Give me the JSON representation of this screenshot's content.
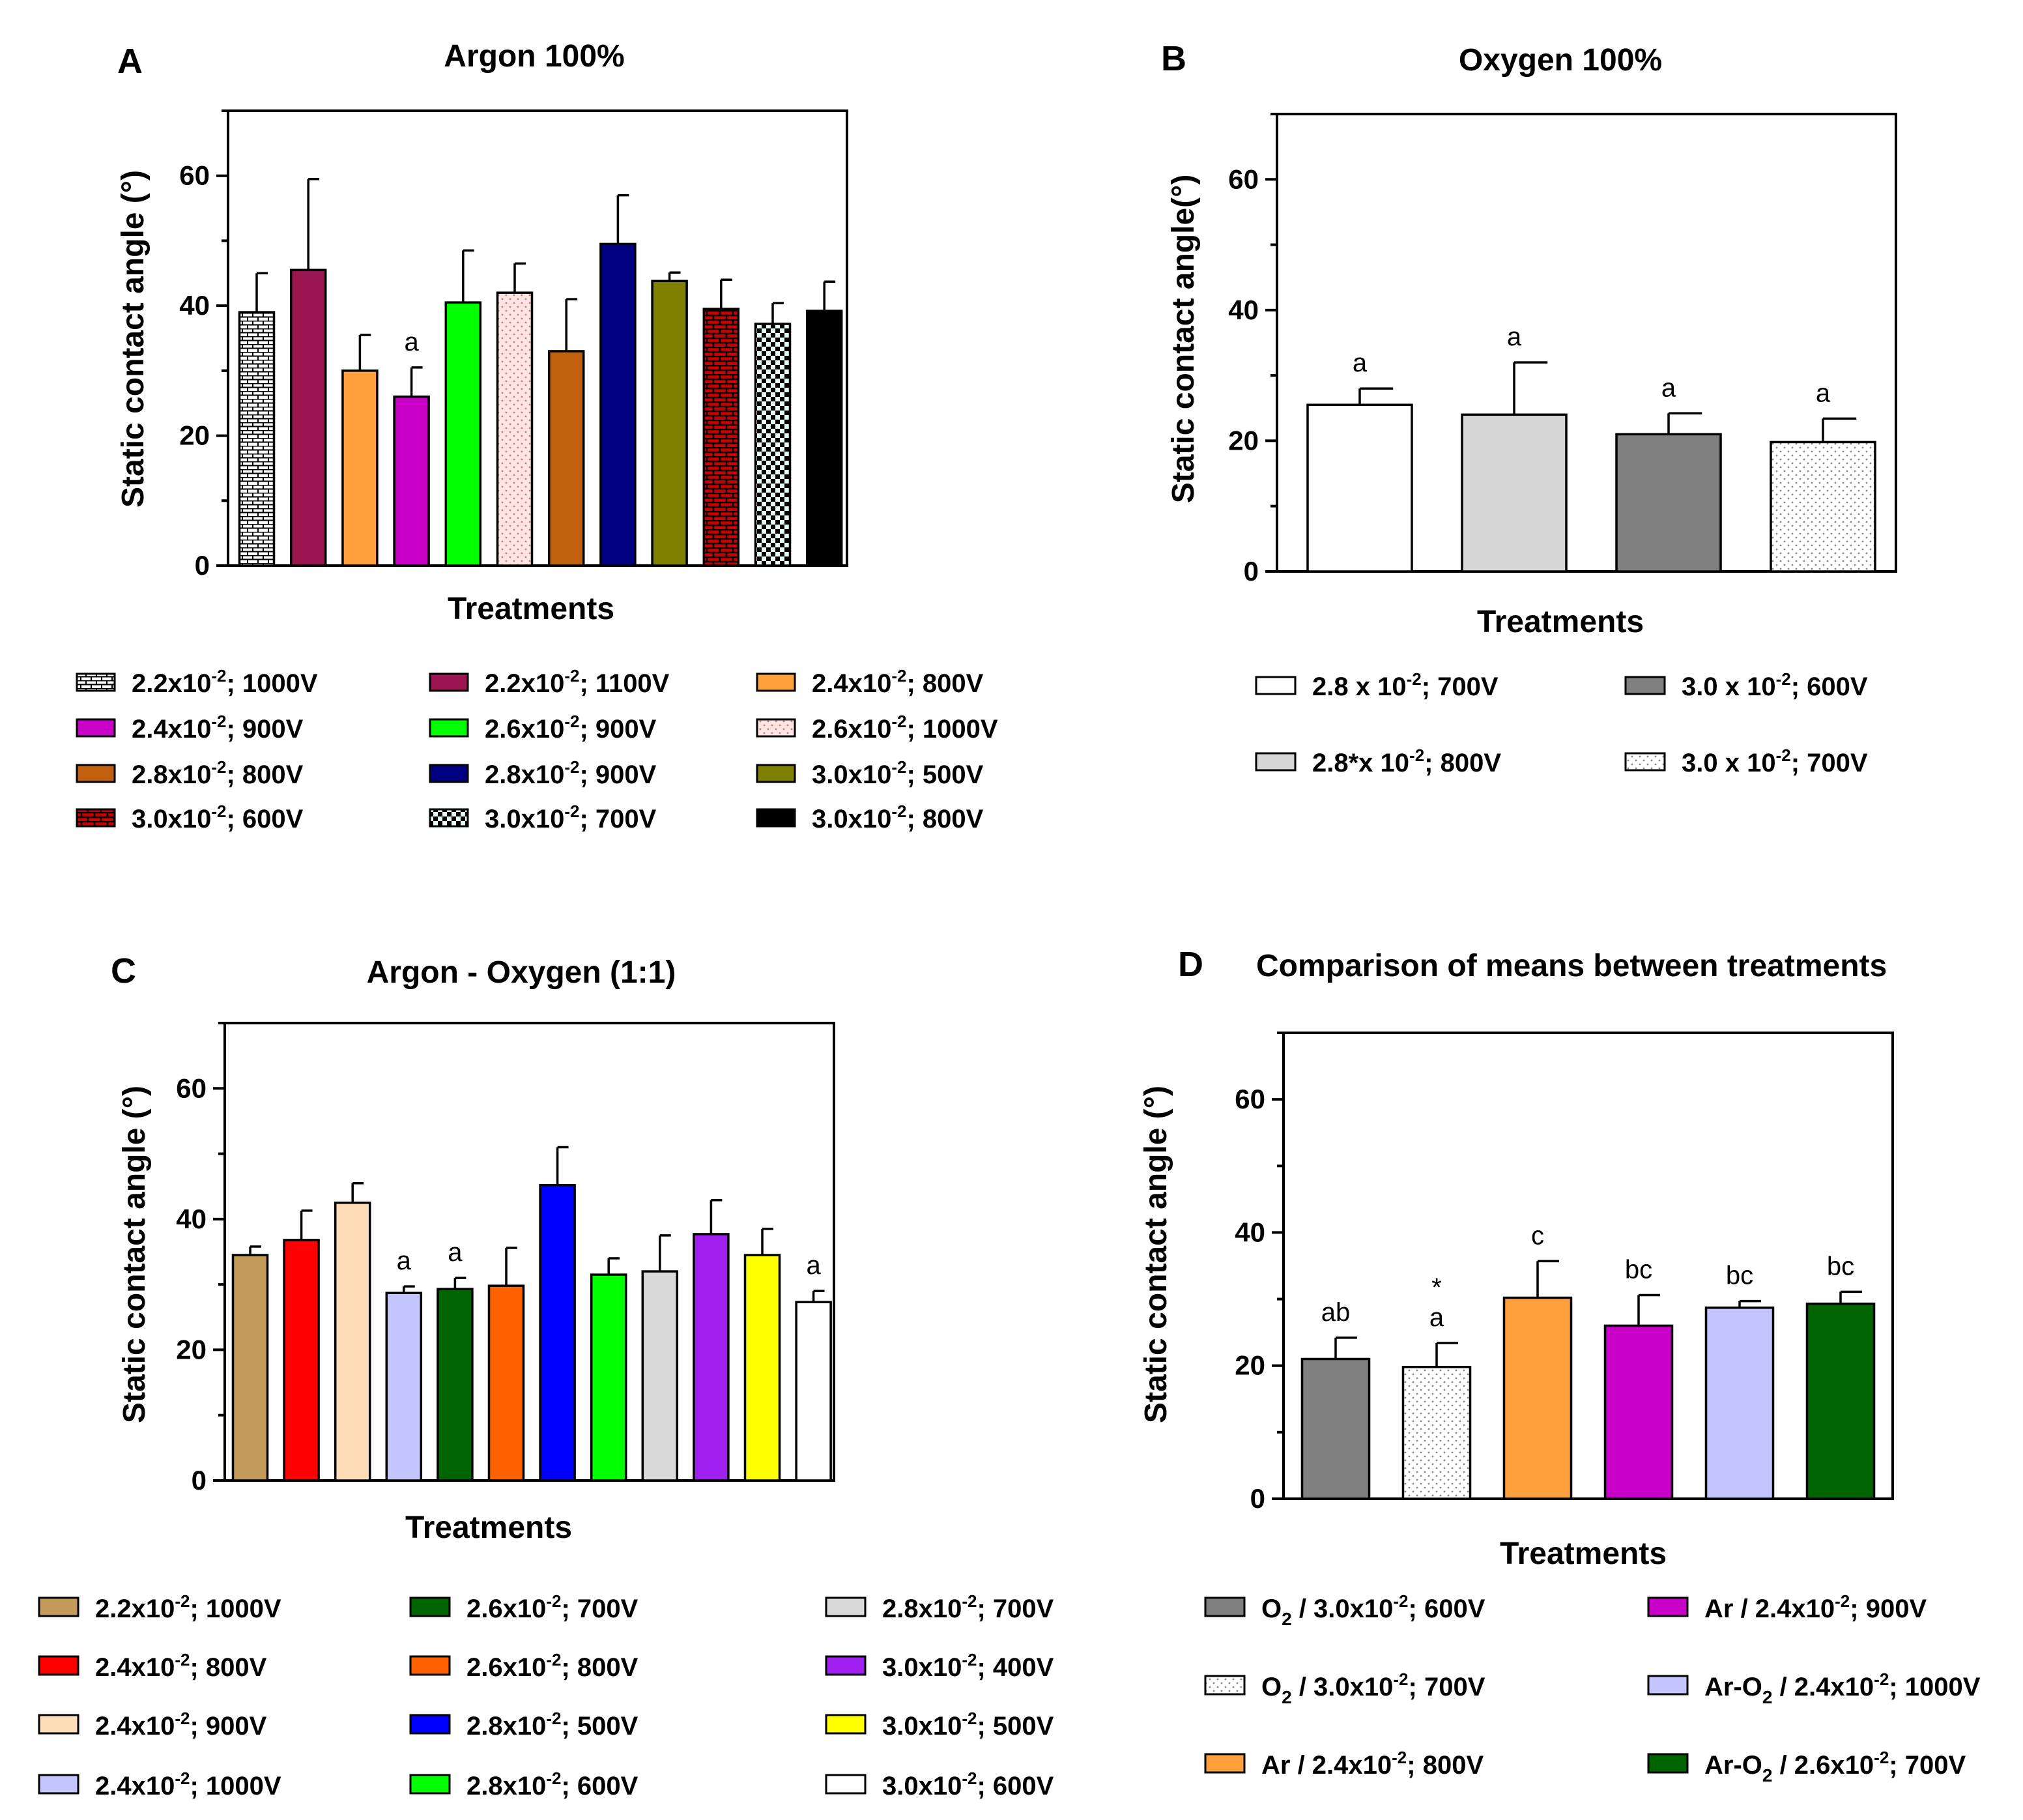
{
  "figure": {
    "panels": [
      "A",
      "B",
      "C",
      "D"
    ]
  },
  "chart_data": [
    {
      "panel": "A",
      "type": "bar",
      "title": "Argon 100%",
      "xlabel": "Treatments",
      "ylabel": "Static contact angle (°)",
      "ylim": [
        0,
        70
      ],
      "yticks": [
        0,
        20,
        40,
        60
      ],
      "series": [
        {
          "legend": [
            "2.2x10",
            "-2",
            "; 1000V"
          ],
          "value": 39,
          "err": 6,
          "color": "#ffffff",
          "pattern": "bricks-small",
          "sig": ""
        },
        {
          "legend": [
            "2.2x10",
            "-2",
            "; 1100V"
          ],
          "value": 45.5,
          "err": 14,
          "color": "#9b1650",
          "pattern": "",
          "sig": ""
        },
        {
          "legend": [
            "2.4x10",
            "-2",
            "; 800V"
          ],
          "value": 30,
          "err": 5.5,
          "color": "#ffa03c",
          "pattern": "",
          "sig": ""
        },
        {
          "legend": [
            "2.4x10",
            "-2",
            "; 900V"
          ],
          "value": 26,
          "err": 4.5,
          "color": "#c800c8",
          "pattern": "",
          "sig": "a"
        },
        {
          "legend": [
            "2.6x10",
            "-2",
            "; 900V"
          ],
          "value": 40.5,
          "err": 8,
          "color": "#00ff00",
          "pattern": "",
          "sig": ""
        },
        {
          "legend": [
            "2.6x10",
            "-2",
            "; 1000V"
          ],
          "value": 42,
          "err": 4.5,
          "color": "#ffe0e0",
          "pattern": "dots-pink",
          "sig": ""
        },
        {
          "legend": [
            "2.8x10",
            "-2",
            "; 800V"
          ],
          "value": 33,
          "err": 8,
          "color": "#c0600f",
          "pattern": "",
          "sig": ""
        },
        {
          "legend": [
            "2.8x10",
            "-2",
            "; 900V"
          ],
          "value": 49.5,
          "err": 7.5,
          "color": "#000080",
          "pattern": "",
          "sig": ""
        },
        {
          "legend": [
            "3.0x10",
            "-2",
            "; 500V"
          ],
          "value": 43.8,
          "err": 1.3,
          "color": "#808000",
          "pattern": "",
          "sig": ""
        },
        {
          "legend": [
            "3.0x10",
            "-2",
            "; 600V"
          ],
          "value": 39.5,
          "err": 4.5,
          "color": "#cc0000",
          "pattern": "bricks-red",
          "sig": ""
        },
        {
          "legend": [
            "3.0x10",
            "-2",
            "; 700V"
          ],
          "value": 37.2,
          "err": 3.2,
          "color": "#ffffff",
          "pattern": "checker",
          "sig": ""
        },
        {
          "legend": [
            "3.0x10",
            "-2",
            "; 800V"
          ],
          "value": 39.2,
          "err": 4.5,
          "color": "#000000",
          "pattern": "",
          "sig": ""
        }
      ]
    },
    {
      "panel": "B",
      "type": "bar",
      "title": "Oxygen 100%",
      "xlabel": "Treatments",
      "ylabel": "Static contact angle(°)",
      "ylim": [
        0,
        70
      ],
      "yticks": [
        0,
        20,
        40,
        60
      ],
      "series": [
        {
          "legend": [
            "2.8 x 10",
            "-2",
            "; 700V"
          ],
          "value": 25.5,
          "err": 2.5,
          "color": "#ffffff",
          "pattern": "",
          "sig": "a"
        },
        {
          "legend": [
            "2.8*x 10",
            "-2",
            "; 800V"
          ],
          "value": 24,
          "err": 8,
          "color": "#d6d6d6",
          "pattern": "",
          "sig": "a"
        },
        {
          "legend": [
            "3.0 x 10",
            "-2",
            "; 600V"
          ],
          "value": 21,
          "err": 3.2,
          "color": "#808080",
          "pattern": "",
          "sig": "a"
        },
        {
          "legend": [
            "3.0 x 10",
            "-2",
            "; 700V"
          ],
          "value": 19.8,
          "err": 3.6,
          "color": "#ffffff",
          "pattern": "dots-grey",
          "sig": "a"
        }
      ]
    },
    {
      "panel": "C",
      "type": "bar",
      "title": "Argon - Oxygen (1:1)",
      "xlabel": "Treatments",
      "ylabel": "Static contact angle (°)",
      "ylim": [
        0,
        70
      ],
      "yticks": [
        0,
        20,
        40,
        60
      ],
      "series": [
        {
          "legend": [
            "2.2x10",
            "-2",
            "; 1000V"
          ],
          "value": 34.5,
          "err": 1.3,
          "color": "#c49a5a",
          "pattern": "",
          "sig": ""
        },
        {
          "legend": [
            "2.4x10",
            "-2",
            "; 800V"
          ],
          "value": 36.8,
          "err": 4.5,
          "color": "#ff0000",
          "pattern": "",
          "sig": ""
        },
        {
          "legend": [
            "2.4x10",
            "-2",
            "; 900V"
          ],
          "value": 42.5,
          "err": 3,
          "color": "#ffdcb8",
          "pattern": "",
          "sig": ""
        },
        {
          "legend": [
            "2.4x10",
            "-2",
            "; 1000V"
          ],
          "value": 28.7,
          "err": 1,
          "color": "#c4c4ff",
          "pattern": "",
          "sig": "a"
        },
        {
          "legend": [
            "2.6x10",
            "-2",
            "; 700V"
          ],
          "value": 29.3,
          "err": 1.7,
          "color": "#006400",
          "pattern": "",
          "sig": "a"
        },
        {
          "legend": [
            "2.6x10",
            "-2",
            "; 800V"
          ],
          "value": 29.8,
          "err": 5.8,
          "color": "#ff6000",
          "pattern": "",
          "sig": ""
        },
        {
          "legend": [
            "2.8x10",
            "-2",
            "; 500V"
          ],
          "value": 45.2,
          "err": 5.8,
          "color": "#0000ff",
          "pattern": "",
          "sig": ""
        },
        {
          "legend": [
            "2.8x10",
            "-2",
            "; 600V"
          ],
          "value": 31.5,
          "err": 2.5,
          "color": "#00ff00",
          "pattern": "",
          "sig": ""
        },
        {
          "legend": [
            "2.8x10",
            "-2",
            "; 700V"
          ],
          "value": 32,
          "err": 5.5,
          "color": "#d9d9d9",
          "pattern": "",
          "sig": ""
        },
        {
          "legend": [
            "3.0x10",
            "-2",
            "; 400V"
          ],
          "value": 37.7,
          "err": 5.2,
          "color": "#a020f0",
          "pattern": "",
          "sig": ""
        },
        {
          "legend": [
            "3.0x10",
            "-2",
            "; 500V"
          ],
          "value": 34.5,
          "err": 4,
          "color": "#ffff00",
          "pattern": "",
          "sig": ""
        },
        {
          "legend": [
            "3.0x10",
            "-2",
            "; 600V"
          ],
          "value": 27.3,
          "err": 1.7,
          "color": "#ffffff",
          "pattern": "",
          "sig": "a"
        }
      ]
    },
    {
      "panel": "D",
      "type": "bar",
      "title": "Comparison of means between treatments",
      "xlabel": "Treatments",
      "ylabel": "Static contact angle (°)",
      "ylim": [
        0,
        70
      ],
      "yticks": [
        0,
        20,
        40,
        60
      ],
      "series": [
        {
          "legend": [
            "O",
            "2",
            " / 3.0x10",
            "-2",
            "; 600V"
          ],
          "value": 21,
          "err": 3.2,
          "color": "#808080",
          "pattern": "",
          "sig": "ab",
          "star": false
        },
        {
          "legend": [
            "O",
            "2",
            " / 3.0x10",
            "-2",
            "; 700V"
          ],
          "value": 19.8,
          "err": 3.6,
          "color": "#ffffff",
          "pattern": "dots-grey",
          "sig": "a",
          "star": true
        },
        {
          "legend": [
            "Ar / 2.4x10",
            "-2",
            "; 800V"
          ],
          "value": 30.2,
          "err": 5.5,
          "color": "#ffa03c",
          "pattern": "",
          "sig": "c",
          "star": false
        },
        {
          "legend": [
            "Ar / 2.4x10",
            "-2",
            "; 900V"
          ],
          "value": 26,
          "err": 4.6,
          "color": "#c800c8",
          "pattern": "",
          "sig": "bc",
          "star": false
        },
        {
          "legend": [
            "Ar-O",
            "2",
            " / 2.4x10",
            "-2",
            "; 1000V"
          ],
          "value": 28.7,
          "err": 1,
          "color": "#c4c4ff",
          "pattern": "",
          "sig": "bc",
          "star": false
        },
        {
          "legend": [
            "Ar-O",
            "2",
            " / 2.6x10",
            "-2",
            "; 700V"
          ],
          "value": 29.3,
          "err": 1.8,
          "color": "#006400",
          "pattern": "",
          "sig": "bc",
          "star": false
        }
      ]
    }
  ]
}
